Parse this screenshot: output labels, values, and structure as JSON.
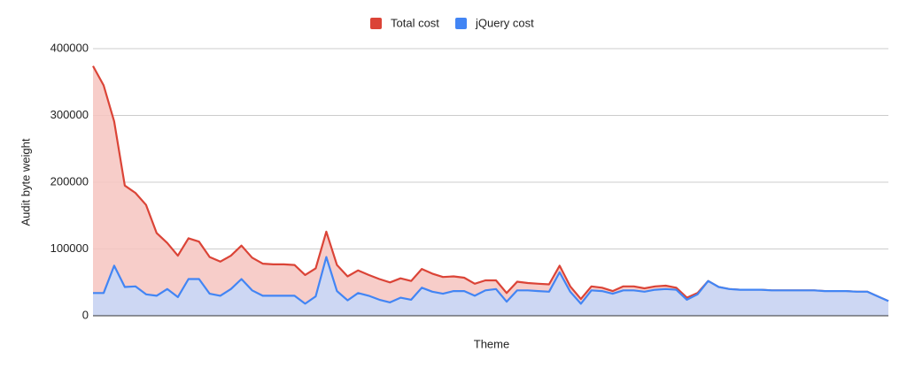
{
  "chart_data": {
    "type": "area",
    "x_label": "Theme",
    "y_label": "Audit byte weight",
    "ylim": [
      0,
      400000
    ],
    "yticks": [
      0,
      100000,
      200000,
      300000,
      400000
    ],
    "grid": true,
    "legend": "top",
    "series": [
      {
        "name": "Total cost",
        "color": "#db4437",
        "fill": "#f6c4c0",
        "values": [
          374000,
          345000,
          291000,
          195000,
          184000,
          166000,
          124000,
          109000,
          90000,
          116000,
          111000,
          88000,
          81000,
          90000,
          105000,
          87000,
          78000,
          77000,
          77000,
          76000,
          61000,
          71000,
          126000,
          76000,
          59000,
          68000,
          61000,
          55000,
          50000,
          56000,
          52000,
          70000,
          63000,
          58000,
          59000,
          57000,
          48000,
          53000,
          53000,
          34000,
          51000,
          49000,
          48000,
          47000,
          75000,
          44000,
          25000,
          44000,
          42000,
          37000,
          44000,
          44000,
          41000,
          44000,
          45000,
          42000,
          27000,
          34000,
          52000,
          43000,
          40000,
          39000,
          39000,
          39000,
          38000,
          38000,
          38000,
          38000,
          38000,
          37000,
          37000,
          37000,
          36000,
          36000,
          29000,
          22000
        ]
      },
      {
        "name": "jQuery cost",
        "color": "#4285f4",
        "fill": "#c6d8fa",
        "values": [
          34000,
          34000,
          75000,
          43000,
          44000,
          32000,
          30000,
          40000,
          28000,
          55000,
          55000,
          33000,
          30000,
          40000,
          55000,
          38000,
          30000,
          30000,
          30000,
          30000,
          18000,
          29000,
          88000,
          37000,
          23000,
          34000,
          30000,
          24000,
          20000,
          27000,
          24000,
          42000,
          36000,
          33000,
          37000,
          37000,
          30000,
          38000,
          40000,
          21000,
          38000,
          38000,
          37000,
          36000,
          65000,
          36000,
          18000,
          38000,
          37000,
          33000,
          38000,
          38000,
          36000,
          39000,
          40000,
          39000,
          24000,
          32000,
          52000,
          43000,
          40000,
          39000,
          39000,
          39000,
          38000,
          38000,
          38000,
          38000,
          38000,
          37000,
          37000,
          37000,
          36000,
          36000,
          29000,
          22000
        ]
      }
    ]
  }
}
